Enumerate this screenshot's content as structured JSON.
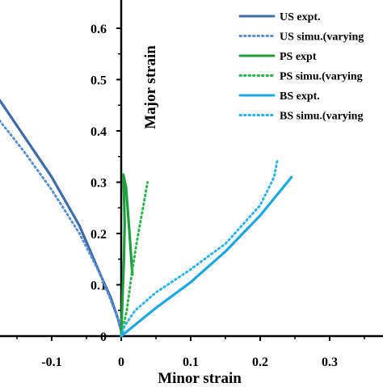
{
  "chart_data": {
    "type": "line",
    "title": "",
    "xlabel": "Minor strain",
    "ylabel": "Major strain",
    "xlim": [
      -0.175,
      0.375
    ],
    "ylim": [
      0,
      0.63
    ],
    "x_ticks": [
      "-0.1",
      "0",
      "0.1",
      "0.2",
      "0.3"
    ],
    "x_tick_values": [
      -0.1,
      0,
      0.1,
      0.2,
      0.3
    ],
    "y_ticks": [
      "0",
      "0.1",
      "0.2",
      "0.3",
      "0.4",
      "0.5",
      "0.6"
    ],
    "y_tick_values": [
      0,
      0.1,
      0.2,
      0.3,
      0.4,
      0.5,
      0.6
    ],
    "grid": false,
    "legend_position": "top-right",
    "series": [
      {
        "name": "US expt.",
        "color": "#3d6ca8",
        "style": "solid",
        "points": [
          [
            -0.175,
            0.46
          ],
          [
            -0.14,
            0.39
          ],
          [
            -0.1,
            0.31
          ],
          [
            -0.06,
            0.215
          ],
          [
            -0.03,
            0.12
          ],
          [
            -0.015,
            0.075
          ],
          [
            -0.005,
            0.035
          ],
          [
            0.0,
            0.01
          ]
        ]
      },
      {
        "name": "US simu.(varying",
        "color": "#5b8ed0",
        "style": "dotted",
        "points": [
          [
            -0.175,
            0.42
          ],
          [
            -0.14,
            0.36
          ],
          [
            -0.1,
            0.285
          ],
          [
            -0.06,
            0.2
          ],
          [
            -0.03,
            0.12
          ],
          [
            -0.015,
            0.07
          ],
          [
            -0.005,
            0.035
          ],
          [
            0.0,
            0.01
          ]
        ]
      },
      {
        "name": "PS expt",
        "color": "#1f9e3e",
        "style": "solid",
        "points": [
          [
            0.0,
            0.0
          ],
          [
            0.002,
            0.08
          ],
          [
            0.004,
            0.15
          ],
          [
            0.005,
            0.22
          ],
          [
            0.004,
            0.28
          ],
          [
            0.003,
            0.315
          ],
          [
            0.007,
            0.29
          ],
          [
            0.012,
            0.2
          ],
          [
            0.016,
            0.12
          ]
        ]
      },
      {
        "name": "PS simu.(varying",
        "color": "#2bb54c",
        "style": "dotted",
        "points": [
          [
            0.0,
            0.0
          ],
          [
            0.008,
            0.05
          ],
          [
            0.015,
            0.12
          ],
          [
            0.022,
            0.18
          ],
          [
            0.03,
            0.24
          ],
          [
            0.038,
            0.3
          ]
        ]
      },
      {
        "name": "BS expt.",
        "color": "#1ea7e1",
        "style": "solid",
        "points": [
          [
            0.0,
            0.0
          ],
          [
            0.05,
            0.055
          ],
          [
            0.1,
            0.105
          ],
          [
            0.15,
            0.165
          ],
          [
            0.2,
            0.235
          ],
          [
            0.245,
            0.31
          ]
        ]
      },
      {
        "name": "BS simu.(varying",
        "color": "#29b5ea",
        "style": "dotted",
        "points": [
          [
            0.0,
            0.0
          ],
          [
            0.005,
            0.02
          ],
          [
            0.02,
            0.05
          ],
          [
            0.05,
            0.085
          ],
          [
            0.1,
            0.13
          ],
          [
            0.15,
            0.18
          ],
          [
            0.2,
            0.255
          ],
          [
            0.22,
            0.31
          ],
          [
            0.225,
            0.345
          ]
        ]
      }
    ]
  }
}
